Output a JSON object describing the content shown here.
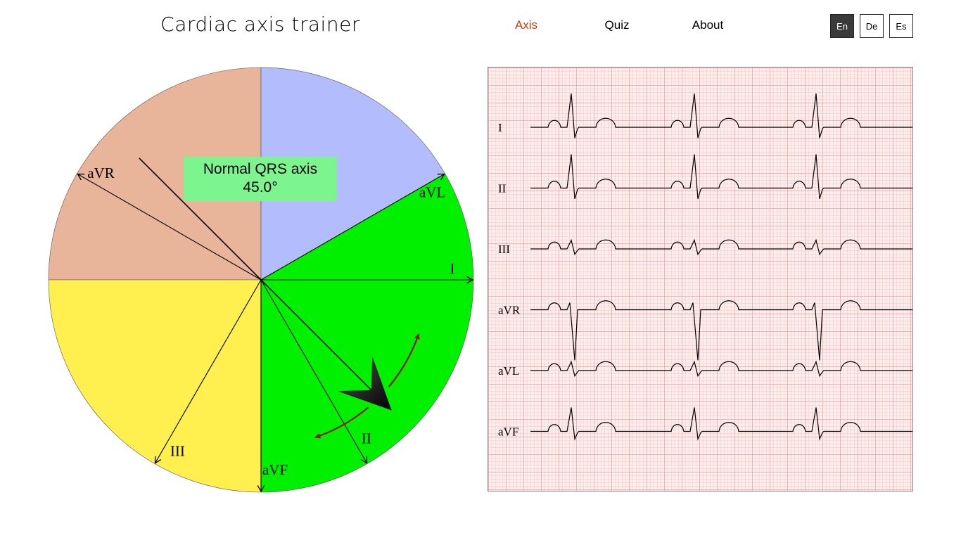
{
  "header": {
    "title": "Cardiac axis trainer",
    "nav": [
      {
        "label": "Axis",
        "active": true
      },
      {
        "label": "Quiz",
        "active": false
      },
      {
        "label": "About",
        "active": false
      }
    ],
    "languages": [
      {
        "label": "En",
        "active": true
      },
      {
        "label": "De",
        "active": false
      },
      {
        "label": "Es",
        "active": false
      }
    ]
  },
  "wheel": {
    "sectors": [
      {
        "name": "extreme-axis",
        "color": "#e8b49a",
        "from_deg": -180,
        "to_deg": -90
      },
      {
        "name": "left-axis-deviation",
        "color": "#b3bcfc",
        "from_deg": -90,
        "to_deg": -30
      },
      {
        "name": "normal-axis",
        "color": "#00f000",
        "from_deg": -30,
        "to_deg": 90
      },
      {
        "name": "right-axis-deviation",
        "color": "#fff050",
        "from_deg": 90,
        "to_deg": 180
      }
    ],
    "leads": [
      {
        "label": "I",
        "angle_deg": 0
      },
      {
        "label": "II",
        "angle_deg": 60
      },
      {
        "label": "III",
        "angle_deg": 120
      },
      {
        "label": "aVR",
        "angle_deg": -150
      },
      {
        "label": "aVL",
        "angle_deg": -30
      },
      {
        "label": "aVF",
        "angle_deg": 90
      }
    ],
    "axis_deg": 45.0,
    "axis_text": "Normal QRS axis",
    "axis_value": "45.0°",
    "arrow_color": "#8b1a10"
  },
  "ecg": {
    "leads": [
      {
        "label": "I",
        "amplitude": 1.0
      },
      {
        "label": "II",
        "amplitude": 1.0
      },
      {
        "label": "III",
        "amplitude": 0.26
      },
      {
        "label": "aVR",
        "amplitude": -1.0
      },
      {
        "label": "aVL",
        "amplitude": 0.26
      },
      {
        "label": "aVF",
        "amplitude": 0.71
      }
    ]
  }
}
